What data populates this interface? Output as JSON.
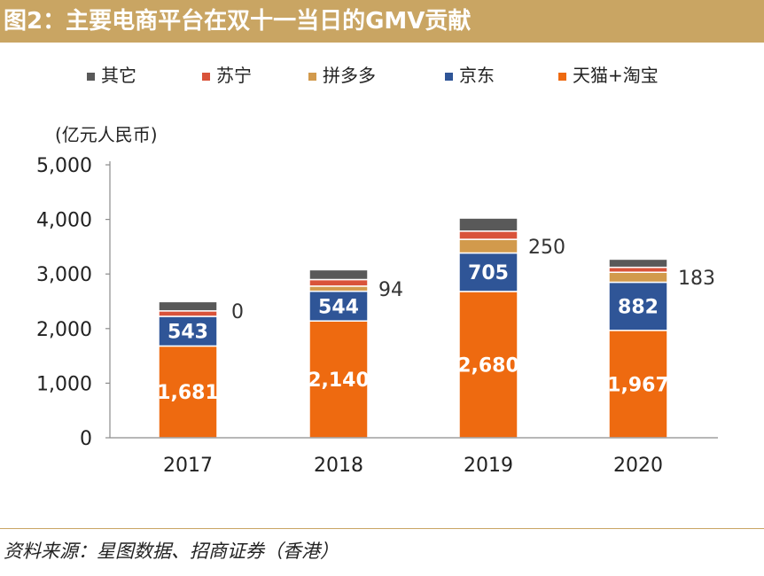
{
  "figure": {
    "title": "图2：主要电商平台在双十一当日的GMV贡献",
    "source": "资料来源：星图数据、招商证券（香港）"
  },
  "chart_data": {
    "type": "bar",
    "stacked": true,
    "unit_label": "(亿元人民币)",
    "categories": [
      "2017",
      "2018",
      "2019",
      "2020"
    ],
    "ylim": [
      0,
      5000
    ],
    "yticks": [
      0,
      1000,
      2000,
      3000,
      4000,
      5000
    ],
    "ytick_labels": [
      "0",
      "1,000",
      "2,000",
      "3,000",
      "4,000",
      "5,000"
    ],
    "grid": false,
    "legend_position": "top",
    "series": [
      {
        "name": "天猫+淘宝",
        "color": "#ee6a10",
        "values": [
          1681,
          2140,
          2680,
          1967
        ],
        "labels": [
          "1,681",
          "2,140",
          "2,680",
          "1,967"
        ],
        "label_color": "#ffffff"
      },
      {
        "name": "京东",
        "color": "#2f5597",
        "values": [
          543,
          544,
          705,
          882
        ],
        "labels": [
          "543",
          "544",
          "705",
          "882"
        ],
        "label_color": "#ffffff"
      },
      {
        "name": "拼多多",
        "color": "#d29a4c",
        "values": [
          0,
          94,
          250,
          183
        ],
        "labels": [
          "0",
          "94",
          "250",
          "183"
        ],
        "label_color": "#333333",
        "label_outside": true
      },
      {
        "name": "苏宁",
        "color": "#d9533a",
        "values": [
          100,
          120,
          150,
          90
        ],
        "labels": []
      },
      {
        "name": "其它",
        "color": "#595959",
        "values": [
          170,
          180,
          240,
          150
        ],
        "labels": []
      }
    ],
    "legend_order": [
      "其它",
      "苏宁",
      "拼多多",
      "京东",
      "天猫+淘宝"
    ]
  }
}
